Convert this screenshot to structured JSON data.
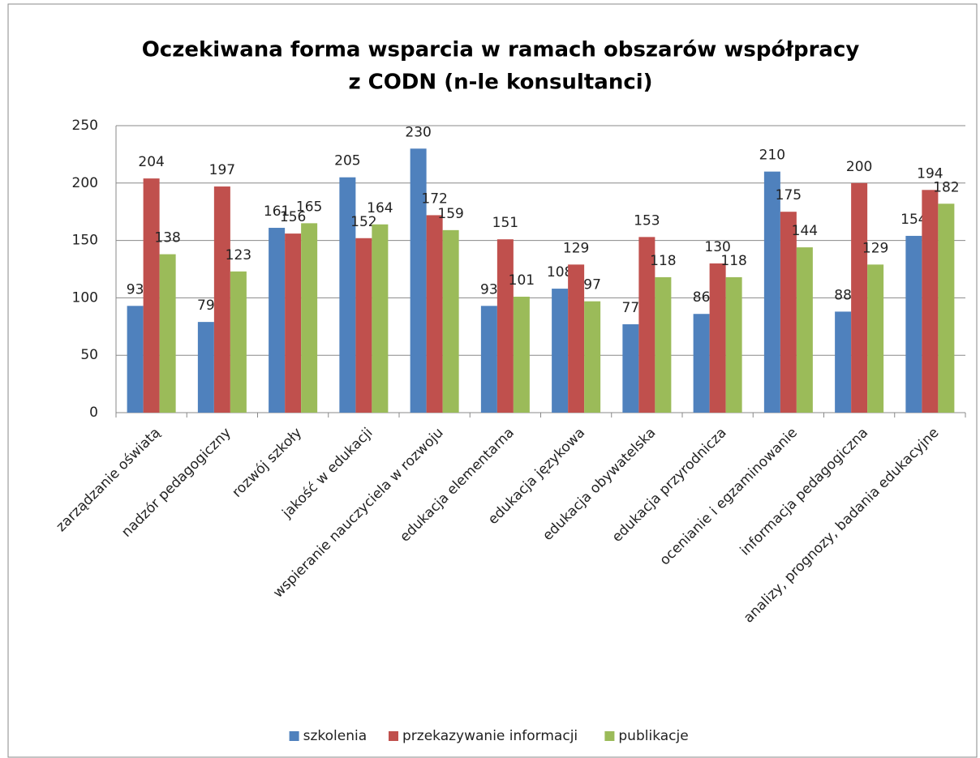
{
  "chart_data": {
    "type": "bar",
    "title": [
      "Oczekiwana forma wsparcia w ramach obszarów współpracy",
      "z CODN (n-le konsultanci)"
    ],
    "categories": [
      "zarządzanie oświatą",
      "nadzór pedagogiczny",
      "rozwój szkoły",
      "jakość w edukacji",
      "wspieranie nauczyciela w rozwoju",
      "edukacja elementarna",
      "edukacja językowa",
      "edukacja obywatelska",
      "edukacja przyrodnicza",
      "ocenianie i egzaminowanie",
      "informacja pedagogiczna",
      "analizy, prognozy, badania edukacyjne"
    ],
    "series": [
      {
        "name": "szkolenia",
        "color": "#4f81bd",
        "values": [
          93,
          79,
          161,
          205,
          230,
          93,
          108,
          77,
          86,
          210,
          88,
          154
        ]
      },
      {
        "name": "przekazywanie informacji",
        "color": "#c0504d",
        "values": [
          204,
          197,
          156,
          152,
          172,
          151,
          129,
          153,
          130,
          175,
          200,
          194
        ]
      },
      {
        "name": "publikacje",
        "color": "#9bbb59",
        "values": [
          138,
          123,
          165,
          164,
          159,
          101,
          97,
          118,
          118,
          144,
          129,
          182
        ]
      }
    ],
    "ylim": [
      0,
      250
    ],
    "yticks": [
      0,
      50,
      100,
      150,
      200,
      250
    ],
    "grid": true,
    "legend": "bottom"
  }
}
